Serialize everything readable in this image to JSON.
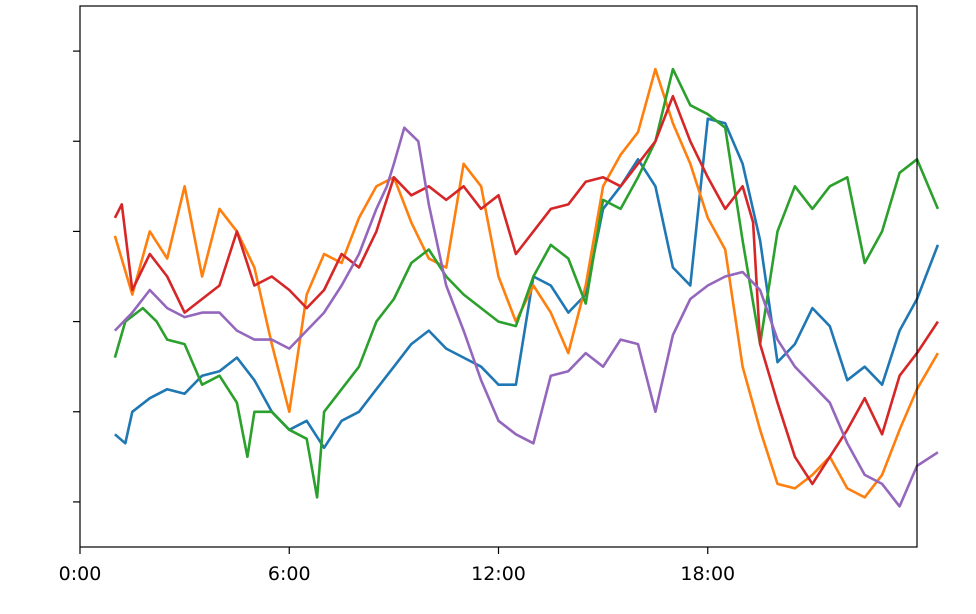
{
  "chart_data": {
    "type": "line",
    "xlabel": "",
    "ylabel": "",
    "xlim": [
      0,
      24
    ],
    "ylim": [
      0,
      12
    ],
    "x_ticks": [
      {
        "value": 0,
        "label": "0:00"
      },
      {
        "value": 6,
        "label": "6:00"
      },
      {
        "value": 12,
        "label": "12:00"
      },
      {
        "value": 18,
        "label": "18:00"
      }
    ],
    "y_ticks": [
      1,
      3,
      5,
      7,
      9,
      11
    ],
    "y_tick_labels_shown": false,
    "grid": false,
    "legend": "none",
    "series": [
      {
        "color": "#1f77b4",
        "x": [
          1.0,
          1.3,
          1.5,
          2.0,
          2.5,
          3.0,
          3.5,
          4.0,
          4.5,
          5.0,
          5.5,
          6.0,
          6.5,
          7.0,
          7.5,
          8.0,
          8.5,
          9.0,
          9.5,
          10.0,
          10.5,
          11.0,
          11.5,
          12.0,
          12.5,
          13.0,
          13.5,
          14.0,
          14.5,
          15.0,
          15.5,
          16.0,
          16.5,
          17.0,
          17.5,
          18.0,
          18.5,
          19.0,
          19.5,
          20.0,
          20.5,
          21.0,
          21.5,
          22.0,
          22.5,
          23.0,
          23.5,
          24.0,
          24.6
        ],
        "values": [
          2.5,
          2.3,
          3.0,
          3.3,
          3.5,
          3.4,
          3.8,
          3.9,
          4.2,
          3.7,
          3.0,
          2.6,
          2.8,
          2.2,
          2.8,
          3.0,
          3.5,
          4.0,
          4.5,
          4.8,
          4.4,
          4.2,
          4.0,
          3.6,
          3.6,
          6.0,
          5.8,
          5.2,
          5.6,
          7.5,
          8.0,
          8.6,
          8.0,
          6.2,
          5.8,
          9.5,
          9.4,
          8.5,
          6.8,
          4.1,
          4.5,
          5.3,
          4.9,
          3.7,
          4.0,
          3.6,
          4.8,
          5.5,
          6.7
        ]
      },
      {
        "color": "#ff7f0e",
        "x": [
          1.0,
          1.5,
          2.0,
          2.5,
          3.0,
          3.5,
          4.0,
          4.5,
          5.0,
          5.5,
          6.0,
          6.5,
          7.0,
          7.5,
          8.0,
          8.5,
          9.0,
          9.5,
          10.0,
          10.5,
          11.0,
          11.5,
          12.0,
          12.5,
          13.0,
          13.5,
          14.0,
          14.5,
          15.0,
          15.5,
          16.0,
          16.5,
          17.0,
          17.5,
          18.0,
          18.5,
          19.0,
          19.5,
          20.0,
          20.5,
          21.0,
          21.5,
          22.0,
          22.5,
          23.0,
          23.5,
          24.0,
          24.6
        ],
        "values": [
          6.9,
          5.6,
          7.0,
          6.4,
          8.0,
          6.0,
          7.5,
          7.0,
          6.2,
          4.5,
          3.0,
          5.6,
          6.5,
          6.3,
          7.3,
          8.0,
          8.2,
          7.2,
          6.4,
          6.2,
          8.5,
          8.0,
          6.0,
          5.0,
          5.8,
          5.2,
          4.3,
          5.8,
          8.0,
          8.7,
          9.2,
          10.6,
          9.4,
          8.5,
          7.3,
          6.6,
          4.0,
          2.6,
          1.4,
          1.3,
          1.6,
          2.0,
          1.3,
          1.1,
          1.6,
          2.6,
          3.5,
          4.3
        ]
      },
      {
        "color": "#2ca02c",
        "x": [
          1.0,
          1.3,
          1.8,
          2.2,
          2.5,
          3.0,
          3.5,
          4.0,
          4.5,
          4.8,
          5.0,
          5.5,
          6.0,
          6.5,
          6.8,
          7.0,
          7.5,
          8.0,
          8.5,
          9.0,
          9.5,
          10.0,
          10.5,
          11.0,
          11.5,
          12.0,
          12.5,
          13.0,
          13.5,
          14.0,
          14.5,
          15.0,
          15.5,
          16.0,
          16.5,
          17.0,
          17.5,
          18.0,
          18.5,
          19.0,
          19.5,
          20.0,
          20.5,
          21.0,
          21.5,
          22.0,
          22.5,
          23.0,
          23.5,
          24.0,
          24.6
        ],
        "values": [
          4.2,
          5.0,
          5.3,
          5.0,
          4.6,
          4.5,
          3.6,
          3.8,
          3.2,
          2.0,
          3.0,
          3.0,
          2.6,
          2.4,
          1.1,
          3.0,
          3.5,
          4.0,
          5.0,
          5.5,
          6.3,
          6.6,
          6.0,
          5.6,
          5.3,
          5.0,
          4.9,
          6.0,
          6.7,
          6.4,
          5.4,
          7.7,
          7.5,
          8.2,
          9.0,
          10.6,
          9.8,
          9.6,
          9.3,
          6.8,
          4.5,
          7.0,
          8.0,
          7.5,
          8.0,
          8.2,
          6.3,
          7.0,
          8.3,
          8.6,
          7.5
        ]
      },
      {
        "color": "#d62728",
        "x": [
          1.0,
          1.2,
          1.5,
          2.0,
          2.5,
          3.0,
          3.5,
          4.0,
          4.5,
          5.0,
          5.5,
          6.0,
          6.5,
          7.0,
          7.5,
          8.0,
          8.5,
          9.0,
          9.5,
          10.0,
          10.5,
          11.0,
          11.5,
          12.0,
          12.5,
          13.0,
          13.5,
          14.0,
          14.5,
          15.0,
          15.5,
          16.0,
          16.5,
          17.0,
          17.5,
          18.0,
          18.5,
          19.0,
          19.3,
          19.5,
          20.0,
          20.5,
          21.0,
          21.5,
          22.0,
          22.5,
          23.0,
          23.5,
          24.0,
          24.6
        ],
        "values": [
          7.3,
          7.6,
          5.7,
          6.5,
          6.0,
          5.2,
          5.5,
          5.8,
          7.0,
          5.8,
          6.0,
          5.7,
          5.3,
          5.7,
          6.5,
          6.2,
          7.0,
          8.2,
          7.8,
          8.0,
          7.7,
          8.0,
          7.5,
          7.8,
          6.5,
          7.0,
          7.5,
          7.6,
          8.1,
          8.2,
          8.0,
          8.5,
          9.0,
          10.0,
          9.0,
          8.2,
          7.5,
          8.0,
          7.2,
          4.5,
          3.2,
          2.0,
          1.4,
          2.0,
          2.6,
          3.3,
          2.5,
          3.8,
          4.3,
          5.0
        ]
      },
      {
        "color": "#9467bd",
        "x": [
          1.0,
          1.5,
          2.0,
          2.5,
          3.0,
          3.5,
          4.0,
          4.5,
          5.0,
          5.5,
          6.0,
          6.5,
          7.0,
          7.5,
          8.0,
          8.5,
          8.8,
          9.0,
          9.3,
          9.7,
          10.0,
          10.5,
          11.0,
          11.5,
          12.0,
          12.5,
          13.0,
          13.5,
          14.0,
          14.5,
          15.0,
          15.5,
          16.0,
          16.5,
          17.0,
          17.5,
          18.0,
          18.5,
          19.0,
          19.5,
          20.0,
          20.5,
          21.0,
          21.5,
          22.0,
          22.5,
          23.0,
          23.5,
          24.0,
          24.6
        ],
        "values": [
          4.8,
          5.2,
          5.7,
          5.3,
          5.1,
          5.2,
          5.2,
          4.8,
          4.6,
          4.6,
          4.4,
          4.8,
          5.2,
          5.8,
          6.5,
          7.5,
          8.0,
          8.5,
          9.3,
          9.0,
          7.6,
          5.8,
          4.8,
          3.7,
          2.8,
          2.5,
          2.3,
          3.8,
          3.9,
          4.3,
          4.0,
          4.6,
          4.5,
          3.0,
          4.7,
          5.5,
          5.8,
          6.0,
          6.1,
          5.7,
          4.6,
          4.0,
          3.6,
          3.2,
          2.3,
          1.6,
          1.4,
          0.9,
          1.8,
          2.1
        ]
      }
    ]
  }
}
